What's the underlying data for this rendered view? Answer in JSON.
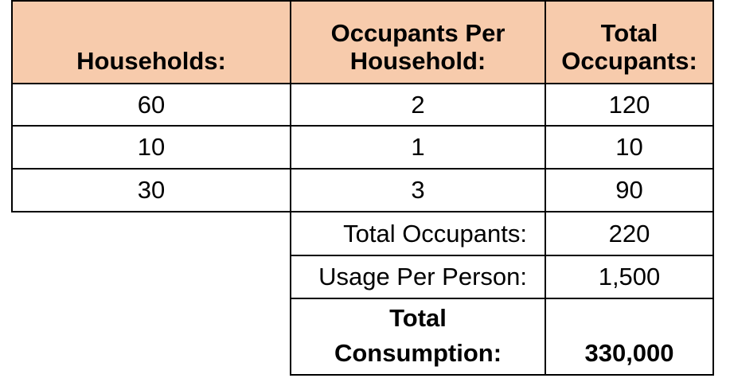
{
  "table": {
    "headers": {
      "households": "Households:",
      "occupants_per_household_line1": "Occupants Per",
      "occupants_per_household_line2": "Household:",
      "total_occupants_line1": "Total",
      "total_occupants_line2": "Occupants:"
    },
    "rows": [
      {
        "households": "60",
        "occupants_per_household": "2",
        "total_occupants": "120"
      },
      {
        "households": "10",
        "occupants_per_household": "1",
        "total_occupants": "10"
      },
      {
        "households": "30",
        "occupants_per_household": "3",
        "total_occupants": "90"
      }
    ],
    "summary": {
      "total_occupants_label": "Total Occupants:",
      "total_occupants_value": "220",
      "usage_per_person_label": "Usage Per Person:",
      "usage_per_person_value": "1,500",
      "total_consumption_label_line1": "Total",
      "total_consumption_label_line2": "Consumption:",
      "total_consumption_value": "330,000"
    },
    "colors": {
      "header_background": "#f7cbac",
      "border": "#000000"
    }
  }
}
